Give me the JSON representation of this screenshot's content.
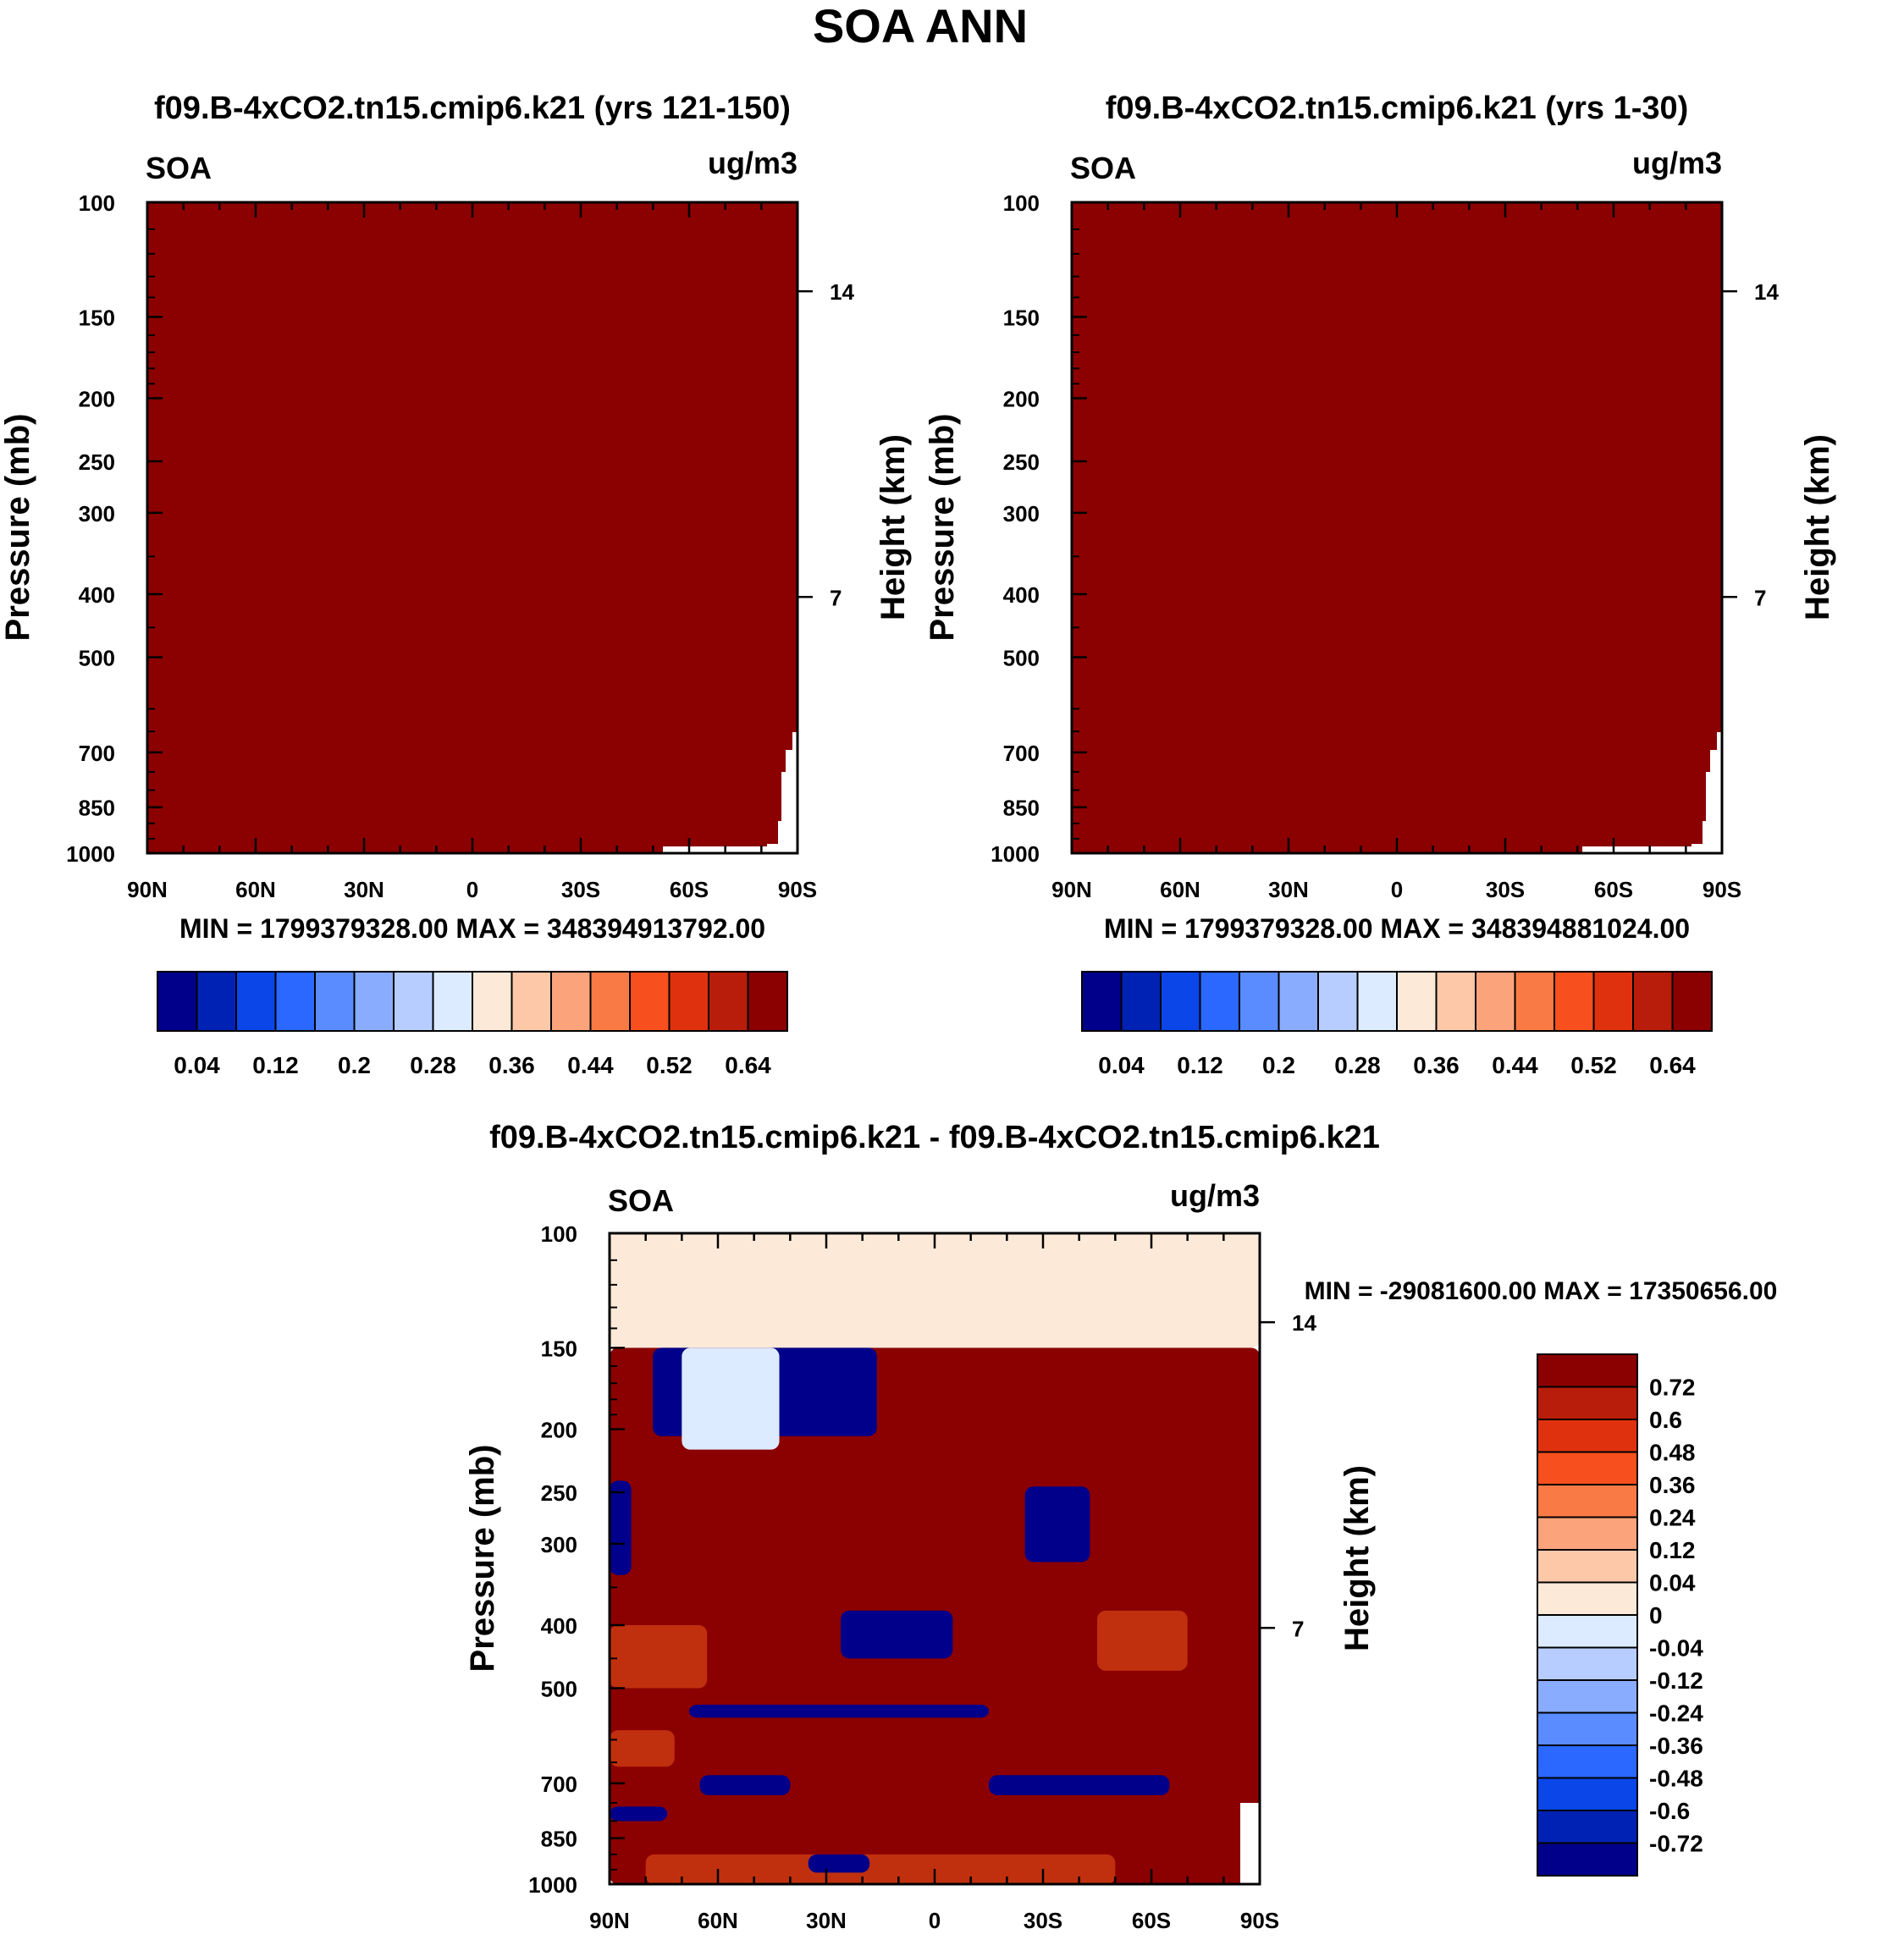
{
  "figure": {
    "title": "SOA ANN"
  },
  "colors": {
    "seq_palette": [
      "#00008a",
      "#0022b4",
      "#0a46e8",
      "#2a68ff",
      "#5a8cff",
      "#8aacff",
      "#b7cdff",
      "#dcebff",
      "#fde9d8",
      "#fcc8a8",
      "#fba37a",
      "#fa7a45",
      "#f74f1e",
      "#e0310f",
      "#b81c0a",
      "#8b0000"
    ],
    "diff_palette": [
      "#00008a",
      "#0022b4",
      "#0a46e8",
      "#2a68ff",
      "#5a8cff",
      "#8aacff",
      "#b7cdff",
      "#dcebff",
      "#fde9d8",
      "#fcc8a8",
      "#fba37a",
      "#fa7a45",
      "#f74f1e",
      "#e0310f",
      "#b81c0a",
      "#8b0000"
    ],
    "fill_dark_red": "#8b0000",
    "fill_cream": "#fde9d8",
    "fill_navy": "#00008a",
    "fill_light_blue": "#dcebff",
    "fill_orange_red": "#c0300e"
  },
  "chart_data": [
    {
      "id": "panel-1",
      "type": "heatmap",
      "title": "f09.B-4xCO2.tn15.cmip6.k21 (yrs 121-150)",
      "variable": "SOA",
      "units": "ug/m3",
      "ylabel": "Pressure (mb)",
      "ylabel_right": "Height (km)",
      "x_ticks": [
        "90N",
        "60N",
        "30N",
        "0",
        "30S",
        "60S",
        "90S"
      ],
      "x_range": [
        90,
        -90
      ],
      "y_ticks": [
        100,
        150,
        200,
        250,
        300,
        400,
        500,
        700,
        850,
        1000
      ],
      "y_range": [
        100,
        1000
      ],
      "height_ticks": [
        {
          "label": "14",
          "pressure": 137
        },
        {
          "label": "7",
          "pressure": 404
        }
      ],
      "min_max": "MIN = 1799379328.00   MAX = 348394913792.00",
      "field": "Saturated at top colour (values far exceed 0.64) everywhere except a small missing-data notch near 60S-90S close to the surface",
      "colorbar_labels": [
        "0.04",
        "0.12",
        "0.2",
        "0.28",
        "0.36",
        "0.44",
        "0.52",
        "0.64"
      ],
      "colorbar_levels": [
        0.04,
        0.08,
        0.12,
        0.16,
        0.2,
        0.24,
        0.28,
        0.32,
        0.36,
        0.4,
        0.44,
        0.48,
        0.52,
        0.56,
        0.64
      ]
    },
    {
      "id": "panel-2",
      "type": "heatmap",
      "title": "f09.B-4xCO2.tn15.cmip6.k21 (yrs 1-30)",
      "variable": "SOA",
      "units": "ug/m3",
      "ylabel": "Pressure (mb)",
      "ylabel_right": "Height (km)",
      "x_ticks": [
        "90N",
        "60N",
        "30N",
        "0",
        "30S",
        "60S",
        "90S"
      ],
      "x_range": [
        90,
        -90
      ],
      "y_ticks": [
        100,
        150,
        200,
        250,
        300,
        400,
        500,
        700,
        850,
        1000
      ],
      "y_range": [
        100,
        1000
      ],
      "height_ticks": [
        {
          "label": "14",
          "pressure": 137
        },
        {
          "label": "7",
          "pressure": 404
        }
      ],
      "min_max": "MIN = 1799379328.00   MAX = 348394881024.00",
      "field": "Saturated at top colour (values far exceed 0.64) everywhere except a small missing-data notch near 60S-90S close to the surface",
      "colorbar_labels": [
        "0.04",
        "0.12",
        "0.2",
        "0.28",
        "0.36",
        "0.44",
        "0.52",
        "0.64"
      ],
      "colorbar_levels": [
        0.04,
        0.08,
        0.12,
        0.16,
        0.2,
        0.24,
        0.28,
        0.32,
        0.36,
        0.4,
        0.44,
        0.48,
        0.52,
        0.56,
        0.64
      ]
    },
    {
      "id": "panel-diff",
      "type": "heatmap",
      "title": "f09.B-4xCO2.tn15.cmip6.k21 - f09.B-4xCO2.tn15.cmip6.k21",
      "variable": "SOA",
      "units": "ug/m3",
      "ylabel": "Pressure (mb)",
      "ylabel_right": "Height (km)",
      "x_ticks": [
        "90N",
        "60N",
        "30N",
        "0",
        "30S",
        "60S",
        "90S"
      ],
      "x_range": [
        90,
        -90
      ],
      "y_ticks": [
        100,
        150,
        200,
        250,
        300,
        400,
        500,
        700,
        850,
        1000
      ],
      "y_range": [
        100,
        1000
      ],
      "height_ticks": [
        {
          "label": "14",
          "pressure": 137
        },
        {
          "label": "7",
          "pressure": 404
        }
      ],
      "min_max": "MIN = -29081600.00   MAX = 17350656.00",
      "colorbar_labels": [
        "0.72",
        "0.6",
        "0.48",
        "0.36",
        "0.24",
        "0.12",
        "0.04",
        "0",
        "-0.04",
        "-0.12",
        "-0.24",
        "-0.36",
        "-0.48",
        "-0.6",
        "-0.72"
      ],
      "regions": [
        {
          "fill": "fill_cream",
          "lat": [
            90,
            -90
          ],
          "p": [
            100,
            150
          ]
        },
        {
          "fill": "fill_dark_red",
          "lat": [
            90,
            -90
          ],
          "p": [
            150,
            1000
          ]
        },
        {
          "fill": "fill_navy",
          "lat": [
            78,
            16
          ],
          "p": [
            150,
            205
          ]
        },
        {
          "fill": "fill_light_blue",
          "lat": [
            43,
            70
          ],
          "p": [
            150,
            215
          ]
        },
        {
          "fill": "fill_navy",
          "lat": [
            90,
            84
          ],
          "p": [
            240,
            335
          ]
        },
        {
          "fill": "fill_navy",
          "lat": [
            26,
            -5
          ],
          "p": [
            380,
            450
          ]
        },
        {
          "fill": "fill_navy",
          "lat": [
            -25,
            -43
          ],
          "p": [
            245,
            320
          ]
        },
        {
          "fill": "fill_orange_red",
          "lat": [
            90,
            63
          ],
          "p": [
            400,
            500
          ]
        },
        {
          "fill": "fill_orange_red",
          "lat": [
            -45,
            -70
          ],
          "p": [
            380,
            470
          ]
        },
        {
          "fill": "fill_navy",
          "lat": [
            68,
            -15
          ],
          "p": [
            530,
            555
          ]
        },
        {
          "fill": "fill_navy",
          "lat": [
            -15,
            -65
          ],
          "p": [
            680,
            730
          ]
        },
        {
          "fill": "fill_navy",
          "lat": [
            65,
            40
          ],
          "p": [
            680,
            730
          ]
        },
        {
          "fill": "fill_orange_red",
          "lat": [
            90,
            72
          ],
          "p": [
            580,
            660
          ]
        },
        {
          "fill": "fill_orange_red",
          "lat": [
            80,
            -50
          ],
          "p": [
            900,
            1000
          ]
        },
        {
          "fill": "fill_navy",
          "lat": [
            90,
            74
          ],
          "p": [
            760,
            800
          ]
        },
        {
          "fill": "fill_navy",
          "lat": [
            35,
            18
          ],
          "p": [
            900,
            960
          ]
        }
      ]
    }
  ]
}
